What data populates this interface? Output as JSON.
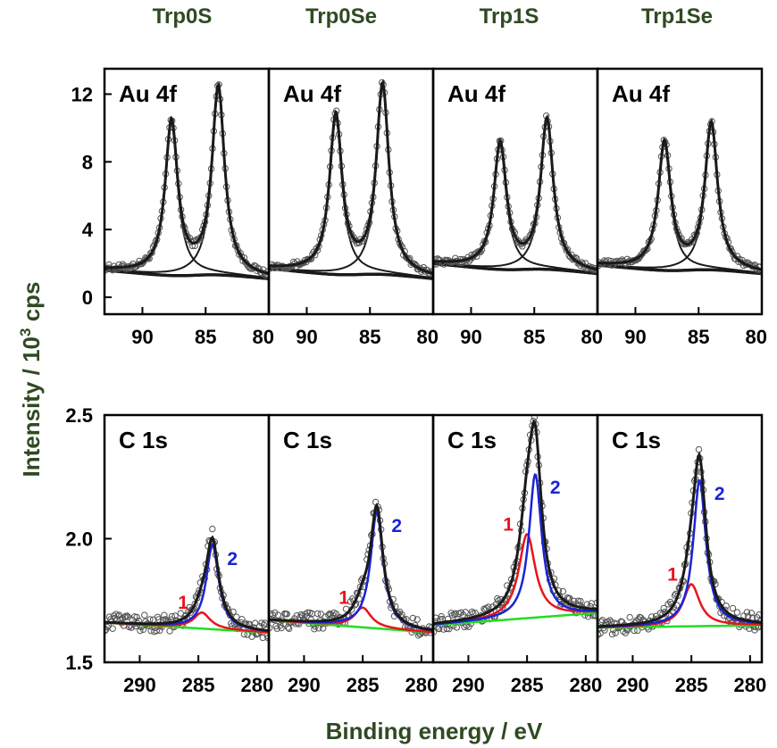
{
  "figure": {
    "column_titles": [
      "Trp0S",
      "Trp0Se",
      "Trp1S",
      "Trp1Se"
    ],
    "ylabel": "Intensity / 10",
    "ylabel_sup": "3",
    "ylabel_unit": " cps",
    "xlabel": "Binding energy / eV",
    "colors": {
      "title_text": "#2f4a22",
      "data_points": "#555555",
      "fit_total": "#1a1a1a",
      "peak1": "#e8141c",
      "peak2": "#1a23d6",
      "background": "#22dd22"
    }
  },
  "chart_data": [
    {
      "type": "line",
      "row": "top",
      "panel_label": "Au 4f",
      "xlim": [
        93,
        80
      ],
      "ylim": [
        -1,
        13.5
      ],
      "xticks": [
        90,
        85,
        80
      ],
      "yticks": [
        0,
        4,
        8,
        12
      ],
      "panels": [
        {
          "name": "Trp0S",
          "peaks": [
            {
              "center": 87.7,
              "height": 10.5
            },
            {
              "center": 84.0,
              "height": 12.5
            }
          ],
          "bg_left": 1.9,
          "bg_right": 1.0,
          "step": 0.8
        },
        {
          "name": "Trp0Se",
          "peaks": [
            {
              "center": 87.7,
              "height": 10.8
            },
            {
              "center": 84.0,
              "height": 12.6
            }
          ],
          "bg_left": 2.0,
          "bg_right": 1.0,
          "step": 0.8
        },
        {
          "name": "Trp1S",
          "peaks": [
            {
              "center": 87.7,
              "height": 8.9
            },
            {
              "center": 84.0,
              "height": 10.3
            }
          ],
          "bg_left": 2.3,
          "bg_right": 1.3,
          "step": 0.8
        },
        {
          "name": "Trp1Se",
          "peaks": [
            {
              "center": 87.7,
              "height": 9.0
            },
            {
              "center": 84.0,
              "height": 10.1
            }
          ],
          "bg_left": 2.2,
          "bg_right": 1.3,
          "step": 0.8
        }
      ]
    },
    {
      "type": "line",
      "row": "bottom",
      "panel_label": "C 1s",
      "xlim": [
        293,
        279
      ],
      "ylim": [
        1.5,
        2.5
      ],
      "xticks": [
        290,
        285,
        280
      ],
      "yticks": [
        1.5,
        2.0,
        2.5
      ],
      "peak_labels": [
        "1",
        "2"
      ],
      "panels": [
        {
          "name": "Trp0S",
          "bg_left": 1.66,
          "bg_right": 1.62,
          "peak1": {
            "center": 284.7,
            "height": 0.065
          },
          "peak2": {
            "center": 283.8,
            "height": 0.34
          }
        },
        {
          "name": "Trp0Se",
          "bg_left": 1.67,
          "bg_right": 1.62,
          "peak1": {
            "center": 285.0,
            "height": 0.08
          },
          "peak2": {
            "center": 283.8,
            "height": 0.47
          }
        },
        {
          "name": "Trp1S",
          "bg_left": 1.65,
          "bg_right": 1.7,
          "peak1": {
            "center": 285.0,
            "height": 0.34
          },
          "peak2": {
            "center": 284.3,
            "height": 0.58
          }
        },
        {
          "name": "Trp1Se",
          "bg_left": 1.64,
          "bg_right": 1.65,
          "peak1": {
            "center": 285.0,
            "height": 0.17
          },
          "peak2": {
            "center": 284.3,
            "height": 0.59
          }
        }
      ]
    }
  ]
}
